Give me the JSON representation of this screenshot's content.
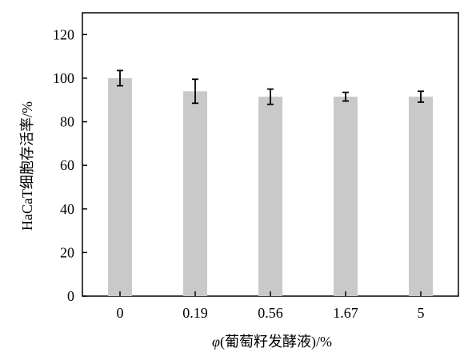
{
  "chart_data": {
    "type": "bar",
    "categories": [
      "0",
      "0.19",
      "0.56",
      "1.67",
      "5"
    ],
    "values": [
      100,
      94,
      91.5,
      91.5,
      91.5
    ],
    "errors": [
      3.5,
      5.5,
      3.5,
      2,
      2.5
    ],
    "title": "",
    "xlabel": "φ(葡萄籽发酵液)/%",
    "ylabel": "HaCaT细胞存活率/%",
    "ylim": [
      0,
      130
    ],
    "yticks": [
      0,
      20,
      40,
      60,
      80,
      100,
      120
    ],
    "grid": false,
    "bar_color": "#c8c9c8",
    "axis_color": "#000000"
  }
}
